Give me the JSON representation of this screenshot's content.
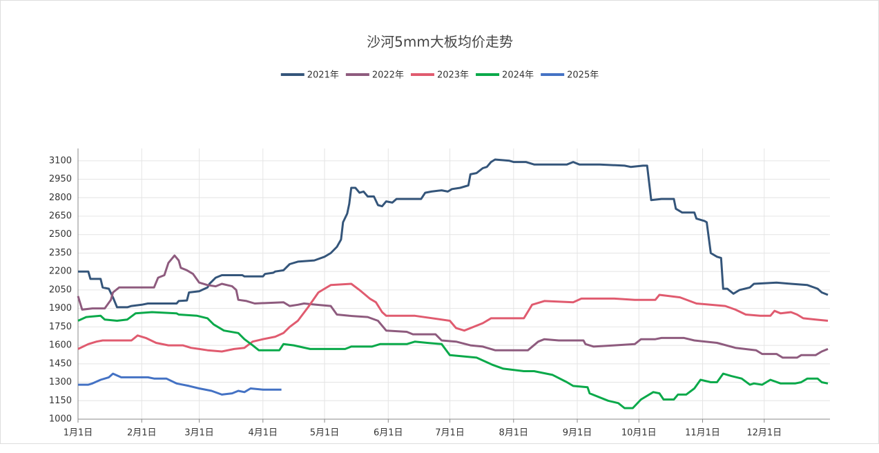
{
  "chart_data": {
    "type": "line",
    "title": "沙河5mm大板均价走势",
    "xlim": [
      0,
      366
    ],
    "ylim": [
      1000,
      3200
    ],
    "xticks": [
      {
        "value": 0,
        "label": "1月1日"
      },
      {
        "value": 31,
        "label": "2月1日"
      },
      {
        "value": 59,
        "label": "3月1日"
      },
      {
        "value": 90,
        "label": "4月1日"
      },
      {
        "value": 120,
        "label": "5月1日"
      },
      {
        "value": 151,
        "label": "6月1日"
      },
      {
        "value": 181,
        "label": "7月1日"
      },
      {
        "value": 212,
        "label": "8月1日"
      },
      {
        "value": 243,
        "label": "9月1日"
      },
      {
        "value": 273,
        "label": "10月1日"
      },
      {
        "value": 304,
        "label": "11月1日"
      },
      {
        "value": 334,
        "label": "12月1日"
      }
    ],
    "yticks": [
      1000,
      1150,
      1300,
      1450,
      1600,
      1750,
      1900,
      2050,
      2200,
      2350,
      2500,
      2650,
      2800,
      2950,
      3100
    ],
    "grid": true,
    "legend": "top",
    "series": [
      {
        "name": "2021年",
        "color": "#34557a",
        "x": [
          0,
          5,
          6,
          11,
          12,
          15,
          17,
          19,
          24,
          26,
          31,
          34,
          48,
          49,
          53,
          54,
          59,
          63,
          64,
          67,
          70,
          80,
          81,
          90,
          91,
          95,
          96,
          100,
          103,
          107,
          115,
          120,
          123,
          126,
          128,
          129,
          131,
          132,
          133,
          135,
          137,
          139,
          141,
          144,
          146,
          148,
          150,
          153,
          155,
          167,
          169,
          172,
          177,
          180,
          182,
          186,
          190,
          191,
          194,
          197,
          199,
          201,
          203,
          210,
          212,
          218,
          222,
          227,
          238,
          241,
          244,
          254,
          266,
          269,
          275,
          277,
          279,
          284,
          290,
          291,
          294,
          300,
          301,
          305,
          306,
          308,
          311,
          313,
          314,
          316,
          319,
          322,
          327,
          329,
          340,
          347,
          355,
          360,
          362,
          365
        ],
        "values": [
          2200,
          2200,
          2140,
          2140,
          2070,
          2060,
          1990,
          1910,
          1910,
          1920,
          1930,
          1940,
          1940,
          1960,
          1965,
          2030,
          2040,
          2070,
          2100,
          2150,
          2170,
          2170,
          2160,
          2160,
          2180,
          2190,
          2200,
          2210,
          2260,
          2280,
          2290,
          2320,
          2350,
          2400,
          2460,
          2600,
          2670,
          2750,
          2880,
          2880,
          2840,
          2850,
          2810,
          2810,
          2740,
          2730,
          2770,
          2760,
          2790,
          2790,
          2840,
          2850,
          2860,
          2850,
          2870,
          2880,
          2900,
          2990,
          3000,
          3040,
          3050,
          3090,
          3110,
          3100,
          3090,
          3090,
          3070,
          3070,
          3070,
          3090,
          3070,
          3070,
          3060,
          3050,
          3060,
          3060,
          2780,
          2790,
          2790,
          2710,
          2680,
          2680,
          2630,
          2610,
          2600,
          2350,
          2320,
          2310,
          2060,
          2060,
          2020,
          2050,
          2070,
          2100,
          2110,
          2100,
          2090,
          2060,
          2030,
          2010
        ]
      },
      {
        "name": "2022年",
        "color": "#8e5b7e",
        "x": [
          0,
          2,
          7,
          13,
          16,
          17,
          20,
          37,
          39,
          42,
          44,
          47,
          49,
          50,
          53,
          56,
          59,
          63,
          67,
          70,
          75,
          77,
          78,
          82,
          86,
          100,
          103,
          107,
          110,
          116,
          123,
          126,
          132,
          141,
          146,
          150,
          160,
          163,
          174,
          177,
          184,
          191,
          197,
          203,
          219,
          224,
          227,
          234,
          246,
          247,
          251,
          261,
          271,
          274,
          281,
          284,
          295,
          300,
          311,
          320,
          330,
          333,
          340,
          343,
          350,
          352,
          359,
          362,
          365
        ],
        "values": [
          2000,
          1890,
          1900,
          1900,
          1970,
          2030,
          2070,
          2070,
          2150,
          2170,
          2270,
          2330,
          2290,
          2230,
          2210,
          2180,
          2110,
          2090,
          2080,
          2100,
          2080,
          2050,
          1970,
          1960,
          1940,
          1950,
          1920,
          1930,
          1940,
          1930,
          1920,
          1850,
          1840,
          1830,
          1800,
          1720,
          1710,
          1690,
          1690,
          1640,
          1630,
          1600,
          1590,
          1560,
          1560,
          1630,
          1650,
          1640,
          1640,
          1610,
          1590,
          1600,
          1610,
          1650,
          1650,
          1660,
          1660,
          1640,
          1620,
          1580,
          1560,
          1530,
          1530,
          1500,
          1500,
          1520,
          1520,
          1550,
          1570
        ]
      },
      {
        "name": "2023年",
        "color": "#e05b6f",
        "x": [
          0,
          5,
          9,
          12,
          26,
          29,
          33,
          38,
          44,
          51,
          55,
          59,
          63,
          70,
          76,
          81,
          85,
          90,
          96,
          100,
          103,
          107,
          112,
          117,
          120,
          123,
          133,
          137,
          142,
          145,
          148,
          150,
          157,
          164,
          181,
          184,
          188,
          197,
          201,
          217,
          221,
          227,
          241,
          245,
          261,
          271,
          281,
          283,
          293,
          301,
          315,
          320,
          325,
          332,
          337,
          339,
          342,
          347,
          350,
          353,
          359,
          365
        ],
        "values": [
          1570,
          1610,
          1630,
          1640,
          1640,
          1680,
          1660,
          1620,
          1600,
          1600,
          1580,
          1570,
          1560,
          1550,
          1570,
          1580,
          1630,
          1650,
          1670,
          1700,
          1750,
          1800,
          1910,
          2030,
          2060,
          2090,
          2100,
          2050,
          1980,
          1950,
          1870,
          1840,
          1840,
          1840,
          1800,
          1740,
          1720,
          1780,
          1820,
          1820,
          1930,
          1960,
          1950,
          1980,
          1980,
          1970,
          1970,
          2010,
          1990,
          1940,
          1920,
          1890,
          1850,
          1840,
          1840,
          1880,
          1860,
          1870,
          1850,
          1820,
          1810,
          1800
        ]
      },
      {
        "name": "2024年",
        "color": "#0aa94a",
        "x": [
          0,
          4,
          11,
          13,
          19,
          24,
          28,
          36,
          48,
          49,
          58,
          63,
          66,
          71,
          78,
          81,
          85,
          88,
          95,
          98,
          100,
          105,
          113,
          130,
          133,
          143,
          147,
          160,
          164,
          170,
          177,
          181,
          194,
          202,
          207,
          217,
          222,
          231,
          238,
          241,
          248,
          249,
          258,
          263,
          266,
          270,
          274,
          280,
          283,
          285,
          290,
          292,
          296,
          300,
          303,
          308,
          311,
          314,
          318,
          323,
          327,
          329,
          333,
          337,
          342,
          349,
          352,
          355,
          360,
          362,
          365
        ],
        "values": [
          1800,
          1830,
          1840,
          1810,
          1800,
          1810,
          1860,
          1870,
          1860,
          1850,
          1840,
          1820,
          1770,
          1720,
          1700,
          1650,
          1600,
          1560,
          1560,
          1560,
          1610,
          1600,
          1570,
          1570,
          1590,
          1590,
          1610,
          1610,
          1630,
          1620,
          1610,
          1520,
          1500,
          1440,
          1410,
          1390,
          1390,
          1360,
          1300,
          1270,
          1260,
          1210,
          1150,
          1130,
          1090,
          1090,
          1160,
          1220,
          1210,
          1160,
          1160,
          1200,
          1200,
          1250,
          1320,
          1300,
          1300,
          1370,
          1350,
          1330,
          1280,
          1290,
          1280,
          1320,
          1290,
          1290,
          1300,
          1330,
          1330,
          1300,
          1290
        ]
      },
      {
        "name": "2025年",
        "color": "#4472c4",
        "x": [
          0,
          5,
          7,
          11,
          15,
          17,
          21,
          34,
          37,
          43,
          48,
          54,
          59,
          65,
          70,
          75,
          78,
          81,
          84,
          90,
          99
        ],
        "values": [
          1280,
          1280,
          1290,
          1320,
          1340,
          1370,
          1340,
          1340,
          1330,
          1330,
          1290,
          1270,
          1250,
          1230,
          1200,
          1210,
          1230,
          1220,
          1250,
          1240,
          1240
        ]
      }
    ]
  }
}
